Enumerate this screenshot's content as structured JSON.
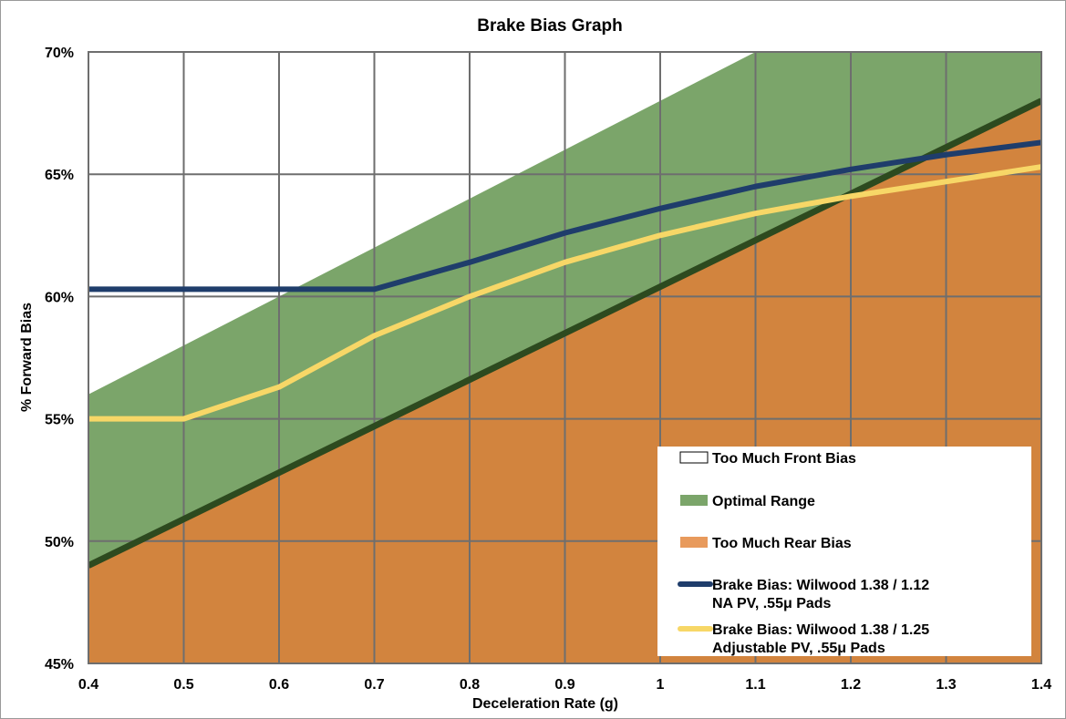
{
  "chart_data": {
    "type": "area",
    "title": "Brake Bias Graph",
    "xlabel": "Deceleration Rate (g)",
    "ylabel": "% Forward Bias",
    "x_ticks": [
      "0.4",
      "0.5",
      "0.6",
      "0.7",
      "0.8",
      "0.9",
      "1",
      "1.1",
      "1.2",
      "1.3",
      "1.4"
    ],
    "y_ticks": [
      "45%",
      "50%",
      "55%",
      "60%",
      "65%",
      "70%"
    ],
    "xlim": [
      0.4,
      1.4
    ],
    "ylim": [
      45,
      70
    ],
    "grid": true,
    "legend_position": "bottom-right",
    "regions": {
      "optimal_upper": {
        "name": "Too Much Front Bias",
        "x": [
          0.4,
          1.4
        ],
        "y": [
          56.0,
          76.0
        ],
        "color": "#ffffff"
      },
      "optimal": {
        "name": "Optimal Range",
        "color": "#7ba56a"
      },
      "optimal_lower": {
        "name": "Too Much Rear Bias",
        "x": [
          0.4,
          1.4
        ],
        "y": [
          49.0,
          68.0
        ],
        "color": "#d2843e"
      }
    },
    "boundary_line": {
      "x": [
        0.4,
        1.4
      ],
      "y": [
        49.0,
        68.0
      ],
      "color": "#2d4a1f"
    },
    "series": [
      {
        "name": "Brake Bias: Wilwood 1.38 / 1.12 NA PV, .55μ Pads",
        "name_lines": [
          "Brake Bias: Wilwood 1.38 / 1.12",
          "NA PV, .55μ Pads"
        ],
        "color": "#1f3d6b",
        "x": [
          0.4,
          0.5,
          0.6,
          0.7,
          0.8,
          0.9,
          1.0,
          1.1,
          1.2,
          1.3,
          1.4
        ],
        "y": [
          60.3,
          60.3,
          60.3,
          60.3,
          61.4,
          62.6,
          63.6,
          64.5,
          65.2,
          65.8,
          66.3
        ]
      },
      {
        "name": "Brake Bias: Wilwood 1.38 / 1.25 Adjustable PV, .55μ Pads",
        "name_lines": [
          "Brake Bias: Wilwood 1.38 / 1.25",
          "Adjustable PV, .55μ Pads"
        ],
        "color": "#f7d767",
        "x": [
          0.4,
          0.5,
          0.6,
          0.7,
          0.8,
          0.9,
          1.0,
          1.1,
          1.2,
          1.3,
          1.4
        ],
        "y": [
          55.0,
          55.0,
          56.3,
          58.4,
          60.0,
          61.4,
          62.5,
          63.4,
          64.1,
          64.7,
          65.3
        ]
      }
    ],
    "legend": [
      {
        "label_lines": [
          "Too Much Front Bias"
        ],
        "kind": "box",
        "color": "#ffffff"
      },
      {
        "label_lines": [
          "Optimal Range"
        ],
        "kind": "box",
        "color": "#7ba56a"
      },
      {
        "label_lines": [
          "Too Much Rear Bias"
        ],
        "kind": "box",
        "color": "#e89a5c"
      },
      {
        "label_lines": [
          "Brake Bias: Wilwood 1.38 / 1.12",
          "NA PV, .55μ Pads"
        ],
        "kind": "line",
        "color": "#1f3d6b"
      },
      {
        "label_lines": [
          "Brake Bias: Wilwood 1.38 / 1.25",
          "Adjustable PV, .55μ Pads"
        ],
        "kind": "line",
        "color": "#f7d767"
      }
    ]
  }
}
